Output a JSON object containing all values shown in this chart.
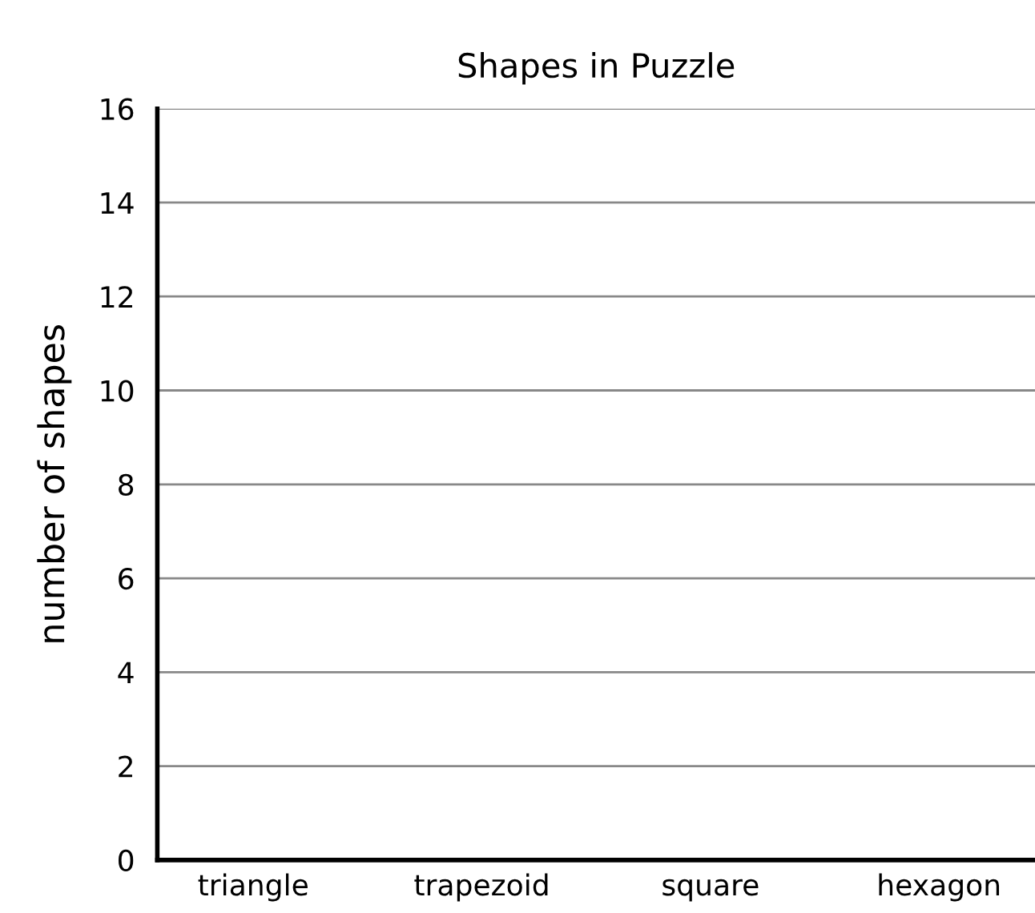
{
  "chart_data": {
    "type": "bar",
    "title": "Shapes in Puzzle",
    "ylabel": "number of shapes",
    "categories": [
      "triangle",
      "trapezoid",
      "square",
      "hexagon"
    ],
    "values": [
      null,
      null,
      null,
      null
    ],
    "ylim": [
      0,
      16
    ],
    "yticks": [
      0,
      2,
      4,
      6,
      8,
      10,
      12,
      14,
      16
    ],
    "grid": "y"
  }
}
